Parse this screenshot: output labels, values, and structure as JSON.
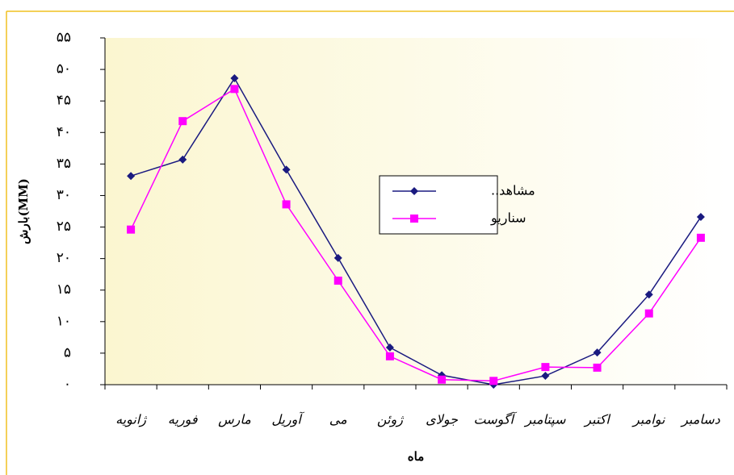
{
  "chart_data": {
    "type": "line",
    "y_label": "بارش(MM)",
    "x_label": "ماه",
    "categories": [
      "ژانویه",
      "فوریه",
      "مارس",
      "آوریل",
      "می",
      "ژوئن",
      "جولای",
      "آگوست",
      "سپتامبر",
      "اکتبر",
      "نوامبر",
      "دسامبر"
    ],
    "series": [
      {
        "name": "مشاهد..",
        "color": "#1a1a80",
        "marker": "diamond",
        "values": [
          33.1,
          35.7,
          48.6,
          34.1,
          20.1,
          5.9,
          1.5,
          0,
          1.4,
          5.1,
          14.3,
          26.6
        ]
      },
      {
        "name": "سناریو",
        "color": "#ff00ff",
        "marker": "square",
        "values": [
          24.6,
          41.8,
          46.9,
          28.6,
          16.5,
          4.5,
          0.8,
          0.6,
          2.8,
          2.7,
          11.3,
          23.3
        ]
      }
    ],
    "ylim": [
      0,
      55
    ],
    "yticks": [
      {
        "value": 0,
        "label": "۰"
      },
      {
        "value": 5,
        "label": "۵"
      },
      {
        "value": 10,
        "label": "۱۰"
      },
      {
        "value": 15,
        "label": "۱۵"
      },
      {
        "value": 20,
        "label": "۲۰"
      },
      {
        "value": 25,
        "label": "۲۵"
      },
      {
        "value": 30,
        "label": "۳۰"
      },
      {
        "value": 35,
        "label": "۳۵"
      },
      {
        "value": 40,
        "label": "۴۰"
      },
      {
        "value": 45,
        "label": "۴۵"
      },
      {
        "value": 50,
        "label": "۵۰"
      },
      {
        "value": 55,
        "label": "۵۵"
      }
    ],
    "grid": false
  }
}
